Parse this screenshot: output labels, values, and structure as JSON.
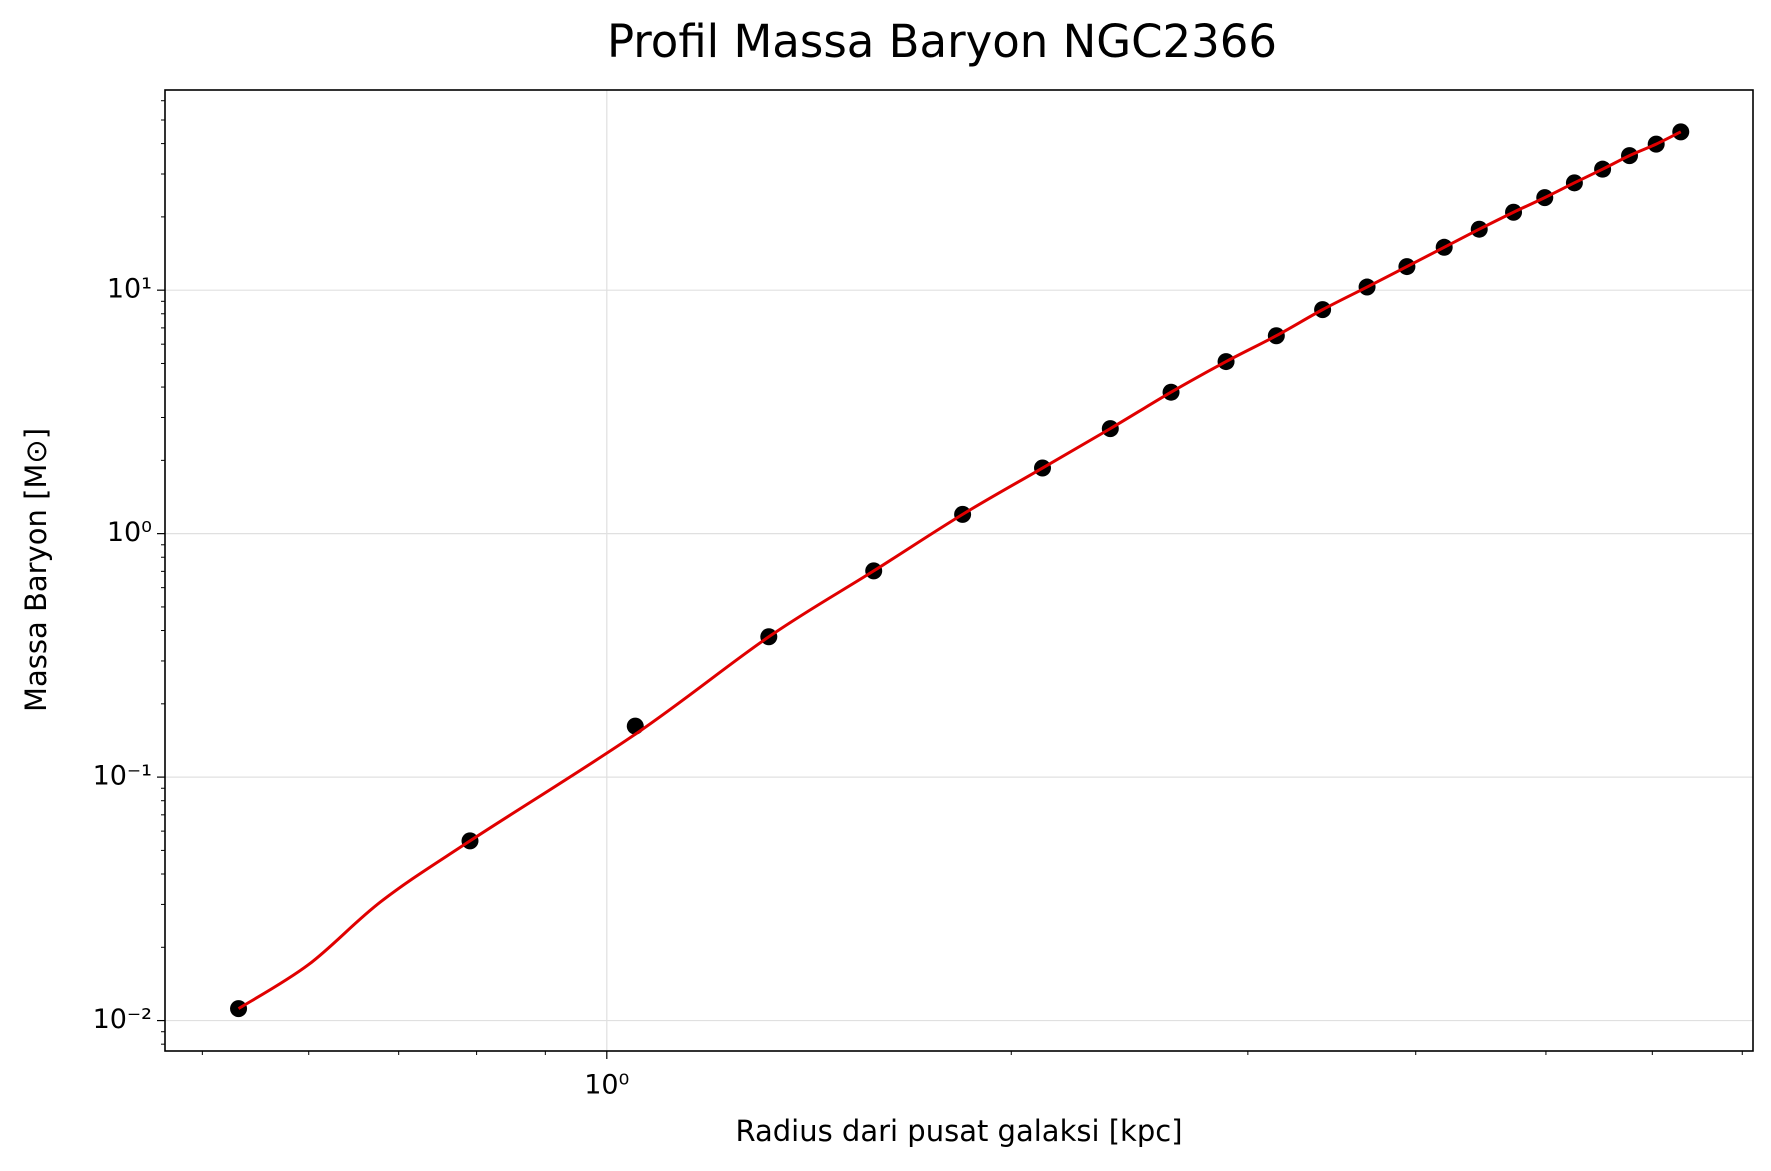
{
  "chart_data": {
    "type": "scatter",
    "title": "Profil Massa Baryon NGC2366",
    "xlabel": "Radius dari pusat galaksi [kpc]",
    "ylabel": "Massa Baryon [M⊙]",
    "xscale": "log",
    "yscale": "log",
    "grid": true,
    "xlim": [
      0.469,
      7.13
    ],
    "ylim": [
      0.0075,
      66.4
    ],
    "xticks": [
      {
        "value": 1,
        "label": "10⁰"
      }
    ],
    "yticks": [
      {
        "value": 0.01,
        "label": "10⁻²"
      },
      {
        "value": 0.1,
        "label": "10⁻¹"
      },
      {
        "value": 1,
        "label": "10⁰"
      },
      {
        "value": 10,
        "label": "10¹"
      }
    ],
    "xminorticks": [
      0.5,
      0.6,
      0.7,
      0.8,
      0.9,
      2,
      3,
      4,
      5,
      6,
      7
    ],
    "yminorticks": [
      0.008,
      0.009,
      0.02,
      0.03,
      0.04,
      0.05,
      0.06,
      0.07,
      0.08,
      0.09,
      0.2,
      0.3,
      0.4,
      0.5,
      0.6,
      0.7,
      0.8,
      0.9,
      2,
      3,
      4,
      5,
      6,
      7,
      8,
      9,
      20,
      30,
      40,
      50,
      60
    ],
    "series": [
      {
        "color": "#000000",
        "kind": "scatter",
        "x": [
          0.532,
          0.791,
          1.05,
          1.32,
          1.58,
          1.84,
          2.11,
          2.37,
          2.63,
          2.89,
          3.15,
          3.41,
          3.68,
          3.94,
          4.2,
          4.46,
          4.73,
          4.99,
          5.25,
          5.51,
          5.77,
          6.04,
          6.3
        ],
        "values": [
          0.0112,
          0.0547,
          0.162,
          0.377,
          0.703,
          1.2,
          1.86,
          2.7,
          3.81,
          5.09,
          6.5,
          8.32,
          10.3,
          12.5,
          15.0,
          17.8,
          20.9,
          24.0,
          27.6,
          31.4,
          35.7,
          39.8,
          44.7
        ]
      },
      {
        "color": "#e00000",
        "kind": "line",
        "x": [
          0.532,
          0.6,
          0.68,
          0.791,
          1.05,
          1.32,
          1.58,
          1.84,
          2.11,
          2.37,
          2.63,
          2.89,
          3.15,
          3.41,
          3.68,
          3.94,
          4.2,
          4.46,
          4.73,
          4.99,
          5.25,
          5.51,
          5.77,
          6.04,
          6.3
        ],
        "values": [
          0.0112,
          0.017,
          0.031,
          0.0547,
          0.15,
          0.377,
          0.703,
          1.2,
          1.86,
          2.7,
          3.81,
          5.09,
          6.5,
          8.32,
          10.3,
          12.5,
          15.0,
          17.8,
          20.9,
          24.0,
          27.6,
          31.4,
          35.7,
          39.8,
          44.7
        ]
      }
    ]
  }
}
